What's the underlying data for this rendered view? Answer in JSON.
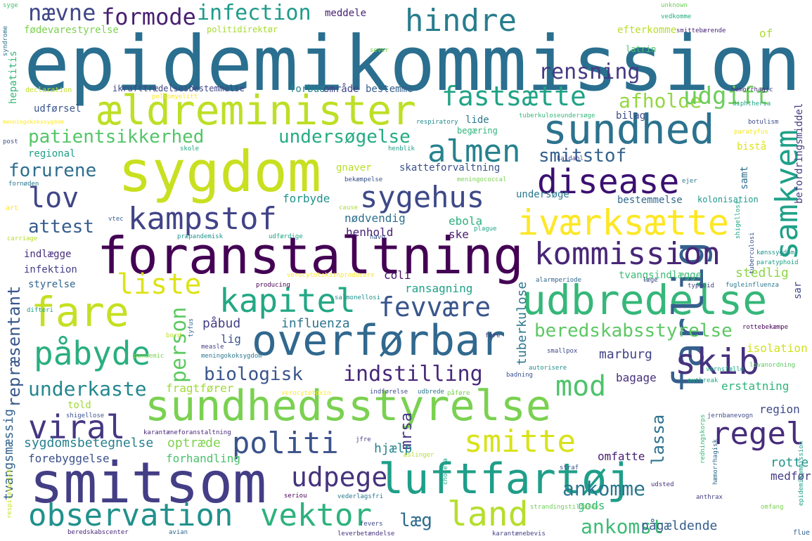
{
  "words": [
    {
      "text": "epidemikommission",
      "color": "#2a6f8f"
    },
    {
      "text": "sygdom",
      "color": "#c8e020"
    },
    {
      "text": "foranstaltning",
      "color": "#440154"
    },
    {
      "text": "smitsom",
      "color": "#433e85"
    },
    {
      "text": "overførbar",
      "color": "#31688e"
    },
    {
      "text": "sundhedsstyrelse",
      "color": "#7ad151"
    },
    {
      "text": "luftfartøj",
      "color": "#1f9e89"
    },
    {
      "text": "ældreminister",
      "color": "#bddf26"
    },
    {
      "text": "sundhed",
      "color": "#2c728e"
    },
    {
      "text": "udbredelse",
      "color": "#35b779"
    },
    {
      "text": "farlig",
      "color": "#355f8d"
    },
    {
      "text": "fare",
      "color": "#c5e021"
    },
    {
      "text": "disease",
      "color": "#3b0f70"
    },
    {
      "text": "iværksætte",
      "color": "#fde725"
    },
    {
      "text": "kommission",
      "color": "#482677"
    },
    {
      "text": "sygehus",
      "color": "#3e4989"
    },
    {
      "text": "kampstof",
      "color": "#414487"
    },
    {
      "text": "kapitel",
      "color": "#22a884"
    },
    {
      "text": "påbyde",
      "color": "#29af7f"
    },
    {
      "text": "viral",
      "color": "#453781"
    },
    {
      "text": "politi",
      "color": "#3b528b"
    },
    {
      "text": "observation",
      "color": "#21918c"
    },
    {
      "text": "vektor",
      "color": "#2db27d"
    },
    {
      "text": "land",
      "color": "#b5de2b"
    },
    {
      "text": "skib",
      "color": "#46327e"
    },
    {
      "text": "smitte",
      "color": "#d8e219"
    },
    {
      "text": "udpege",
      "color": "#46337e"
    },
    {
      "text": "almen",
      "color": "#26828e"
    },
    {
      "text": "hindre",
      "color": "#287d8e"
    },
    {
      "text": "fastsætte",
      "color": "#20a386"
    },
    {
      "text": "lov",
      "color": "#404688"
    },
    {
      "text": "samkvem",
      "color": "#1fa188"
    },
    {
      "text": "regel",
      "color": "#472d7b"
    },
    {
      "text": "mod",
      "color": "#4ec36b"
    },
    {
      "text": "fevvære",
      "color": "#39568c"
    },
    {
      "text": "liste",
      "color": "#dde318"
    },
    {
      "text": "person",
      "color": "#5ec962"
    },
    {
      "text": "afholde",
      "color": "#93d741"
    },
    {
      "text": "rensning",
      "color": "#443a83"
    },
    {
      "text": "udgift",
      "color": "#6ccd5a"
    },
    {
      "text": "formode",
      "color": "#481f70"
    },
    {
      "text": "nævne",
      "color": "#3f4788"
    },
    {
      "text": "infection",
      "color": "#1e9b8a"
    },
    {
      "text": "smitstof",
      "color": "#34618d"
    },
    {
      "text": "patientsikkerhed",
      "color": "#54c568"
    },
    {
      "text": "undersøgelse",
      "color": "#25ac82"
    },
    {
      "text": "forurene",
      "color": "#2e6e8e"
    },
    {
      "text": "attest",
      "color": "#365c8d"
    },
    {
      "text": "beredskabsstyrelse",
      "color": "#5cc863"
    },
    {
      "text": "indstilling",
      "color": "#482878"
    },
    {
      "text": "biologisk",
      "color": "#3a548c"
    },
    {
      "text": "underkaste",
      "color": "#24878e"
    },
    {
      "text": "ankomme",
      "color": "#2a768e"
    },
    {
      "text": "ankomst",
      "color": "#3dbc74"
    },
    {
      "text": "læg",
      "color": "#2f6c8e"
    },
    {
      "text": "repræsentant",
      "color": "#38588c"
    },
    {
      "text": "mrsa",
      "color": "#453882"
    },
    {
      "text": "lassa",
      "color": "#2d718e"
    },
    {
      "text": "tvangsmæssig",
      "color": "#33638d"
    },
    {
      "text": "tuberkulose",
      "color": "#2b758e"
    },
    {
      "text": "sygdomsbetegnelse",
      "color": "#27808e"
    },
    {
      "text": "optræde",
      "color": "#7fd34e"
    },
    {
      "text": "forebyggelse",
      "color": "#3c508b"
    },
    {
      "text": "forhandling",
      "color": "#4ac16d"
    },
    {
      "text": "hjælp",
      "color": "#25848e"
    },
    {
      "text": "fragtfører",
      "color": "#a0da39"
    },
    {
      "text": "erstatning",
      "color": "#2fb47c"
    },
    {
      "text": "isolation",
      "color": "#d0e11c"
    },
    {
      "text": "marburg",
      "color": "#414287"
    },
    {
      "text": "bagage",
      "color": "#46307e"
    },
    {
      "text": "region",
      "color": "#3e4a89"
    },
    {
      "text": "rotte",
      "color": "#1f958b"
    },
    {
      "text": "medfør",
      "color": "#433d84"
    },
    {
      "text": "omfatte",
      "color": "#482071"
    },
    {
      "text": "gods",
      "color": "#32b67a"
    },
    {
      "text": "pågældende",
      "color": "#355e8d"
    },
    {
      "text": "stedlig",
      "color": "#8ed645"
    },
    {
      "text": "influenza",
      "color": "#2b748e"
    },
    {
      "text": "påbud",
      "color": "#424086"
    },
    {
      "text": "lig",
      "color": "#3a538b"
    },
    {
      "text": "ransagning",
      "color": "#1fa287"
    },
    {
      "text": "coli",
      "color": "#471164"
    },
    {
      "text": "ebola",
      "color": "#2ab07f"
    },
    {
      "text": "ske",
      "color": "#481a6c"
    },
    {
      "text": "nødvendig",
      "color": "#2e6f8e"
    },
    {
      "text": "henhold",
      "color": "#482475"
    },
    {
      "text": "forbyde",
      "color": "#20928c"
    },
    {
      "text": "gnaver",
      "color": "#bade28"
    },
    {
      "text": "skatteforvaltning",
      "color": "#3b528b"
    },
    {
      "text": "undersøge",
      "color": "#29798e"
    },
    {
      "text": "bestemmelse",
      "color": "#30698e"
    },
    {
      "text": "kolonisation",
      "color": "#1f988b"
    },
    {
      "text": "samt",
      "color": "#2e6d8e"
    },
    {
      "text": "befordringsmiddel",
      "color": "#443983"
    },
    {
      "text": "tvangsindlægge",
      "color": "#3bbb75"
    },
    {
      "text": "indlægge",
      "color": "#472c7a"
    },
    {
      "text": "infektion",
      "color": "#433e85"
    },
    {
      "text": "styrelse",
      "color": "#31668e"
    },
    {
      "text": "told",
      "color": "#a2da37"
    },
    {
      "text": "regional",
      "color": "#1f9f88"
    },
    {
      "text": "udførsel",
      "color": "#39558c"
    },
    {
      "text": "lide",
      "color": "#2a778e"
    },
    {
      "text": "bilag",
      "color": "#3d4d8a"
    },
    {
      "text": "bistå",
      "color": "#dde318"
    },
    {
      "text": "bestemme",
      "color": "#34608d"
    },
    {
      "text": "forbud",
      "color": "#25838e"
    },
    {
      "text": "område",
      "color": "#414487"
    },
    {
      "text": "hepatitis",
      "color": "#35b779"
    },
    {
      "text": "fødevarestyrelse",
      "color": "#7cd250"
    },
    {
      "text": "politidirektør",
      "color": "#a8db34"
    },
    {
      "text": "efterkomme",
      "color": "#b8de29"
    },
    {
      "text": "of",
      "color": "#addc30"
    },
    {
      "text": "meddele",
      "color": "#482173"
    },
    {
      "text": "latrin",
      "color": "#4ac16d"
    },
    {
      "text": "begæring",
      "color": "#2fb47c"
    },
    {
      "text": "sar",
      "color": "#404688"
    },
    {
      "text": "ikrafttrædelsesbestemmelse",
      "color": "#404588"
    },
    {
      "text": "declaration",
      "color": "#c0df25"
    },
    {
      "text": "syndrome",
      "color": "#2d708e"
    },
    {
      "text": "sever",
      "color": "#7ad151"
    },
    {
      "text": "unknown",
      "color": "#6ece58"
    },
    {
      "text": "vedkomme",
      "color": "#26ad81"
    },
    {
      "text": "smittebærende",
      "color": "#482878"
    },
    {
      "text": "syge",
      "color": "#48c16e"
    },
    {
      "text": "poliomyelitt",
      "color": "#fde725"
    },
    {
      "text": "hemorrhagic",
      "color": "#46327e"
    },
    {
      "text": "botulism",
      "color": "#3e4989"
    },
    {
      "text": "diphtheria",
      "color": "#20a486"
    },
    {
      "text": "tuberkuloseundersøge",
      "color": "#35b779"
    },
    {
      "text": "respiratory",
      "color": "#23898e"
    },
    {
      "text": "paratyfus",
      "color": "#f4e61e"
    },
    {
      "text": "henblik",
      "color": "#1f9e89"
    },
    {
      "text": "skole",
      "color": "#22a884"
    },
    {
      "text": "post",
      "color": "#3b528b"
    },
    {
      "text": "menningokokssygdom",
      "color": "#fde725"
    },
    {
      "text": "kaldahl",
      "color": "#3f4788"
    },
    {
      "text": "fornøden",
      "color": "#2a788e"
    },
    {
      "text": "bekæmpelse",
      "color": "#3b528b"
    },
    {
      "text": "meningococcal",
      "color": "#7ad151"
    },
    {
      "text": "ejer",
      "color": "#2a788e"
    },
    {
      "text": "vtec",
      "color": "#355f8d"
    },
    {
      "text": "cause",
      "color": "#aadc32"
    },
    {
      "text": "plague",
      "color": "#20a486"
    },
    {
      "text": "carriage",
      "color": "#b5de2b"
    },
    {
      "text": "præpandemisk",
      "color": "#21918c"
    },
    {
      "text": "udfærdige",
      "color": "#20a486"
    },
    {
      "text": "havn",
      "color": "#3b528b"
    },
    {
      "text": "verocytotoksinproducere",
      "color": "#fde725"
    },
    {
      "text": "producing",
      "color": "#440154"
    },
    {
      "text": "salmonellosi",
      "color": "#21918c"
    },
    {
      "text": "alarmperiode",
      "color": "#31688e"
    },
    {
      "text": "læge",
      "color": "#3e4989"
    },
    {
      "text": "typhoid",
      "color": "#433e85"
    },
    {
      "text": "fugleinfluenza",
      "color": "#2a788e"
    },
    {
      "text": "tuberculosi",
      "color": "#3b528b"
    },
    {
      "text": "kønssygdom",
      "color": "#21918c"
    },
    {
      "text": "paratyphoid",
      "color": "#1f9e89"
    },
    {
      "text": "shigellosi",
      "color": "#22a884"
    },
    {
      "text": "difteri",
      "color": "#1f9e89"
    },
    {
      "text": "tyfus",
      "color": "#31688e"
    },
    {
      "text": "measle",
      "color": "#433e85"
    },
    {
      "text": "meningokoksygdom",
      "color": "#2a788e"
    },
    {
      "text": "pandemic",
      "color": "#7ad151"
    },
    {
      "text": "smallpox",
      "color": "#3e4989"
    },
    {
      "text": "rottebekæmpe",
      "color": "#440154"
    },
    {
      "text": "autorisere",
      "color": "#21918c"
    },
    {
      "text": "værnsfælle",
      "color": "#20a486"
    },
    {
      "text": "lovanordning",
      "color": "#5ec962"
    },
    {
      "text": "badning",
      "color": "#3b528b"
    },
    {
      "text": "outbreak",
      "color": "#22a884"
    },
    {
      "text": "bord",
      "color": "#bddf26"
    },
    {
      "text": "føre",
      "color": "#46327e"
    },
    {
      "text": "verocytotoxin",
      "color": "#fde725"
    },
    {
      "text": "indførelse",
      "color": "#3e4989"
    },
    {
      "text": "udbrede",
      "color": "#2a788e"
    },
    {
      "text": "påføre",
      "color": "#7ad151"
    },
    {
      "text": "shigellose",
      "color": "#3b528b"
    },
    {
      "text": "karantæneforanstaltning",
      "color": "#482878"
    },
    {
      "text": "jernbanevogn",
      "color": "#3e4989"
    },
    {
      "text": "redningskorps",
      "color": "#35b779"
    },
    {
      "text": "jfre",
      "color": "#433e85"
    },
    {
      "text": "æslinger",
      "color": "#b5de2b"
    },
    {
      "text": "cholera",
      "color": "#20a486"
    },
    {
      "text": "hæmorrhagisk",
      "color": "#31688e"
    },
    {
      "text": "epidemikommission",
      "color": "#1f9e89"
    },
    {
      "text": "straf",
      "color": "#3b528b"
    },
    {
      "text": "respiratorisk",
      "color": "#c8e020"
    },
    {
      "text": "seriou",
      "color": "#440154"
    },
    {
      "text": "vederlagsfri",
      "color": "#2a788e"
    },
    {
      "text": "udsted",
      "color": "#46327e"
    },
    {
      "text": "anthrax",
      "color": "#433e85"
    },
    {
      "text": "strandingstilfælde",
      "color": "#6ece58"
    },
    {
      "text": "omfang",
      "color": "#7ad151"
    },
    {
      "text": "fevers",
      "color": "#3e4989"
    },
    {
      "text": "beredskabscenter",
      "color": "#482878"
    },
    {
      "text": "avian",
      "color": "#31688e"
    },
    {
      "text": "leverbetændelse",
      "color": "#46327e"
    },
    {
      "text": "karantænebevis",
      "color": "#433e85"
    },
    {
      "text": "flue",
      "color": "#355f8d"
    },
    {
      "text": "art",
      "color": "#fde725"
    }
  ]
}
